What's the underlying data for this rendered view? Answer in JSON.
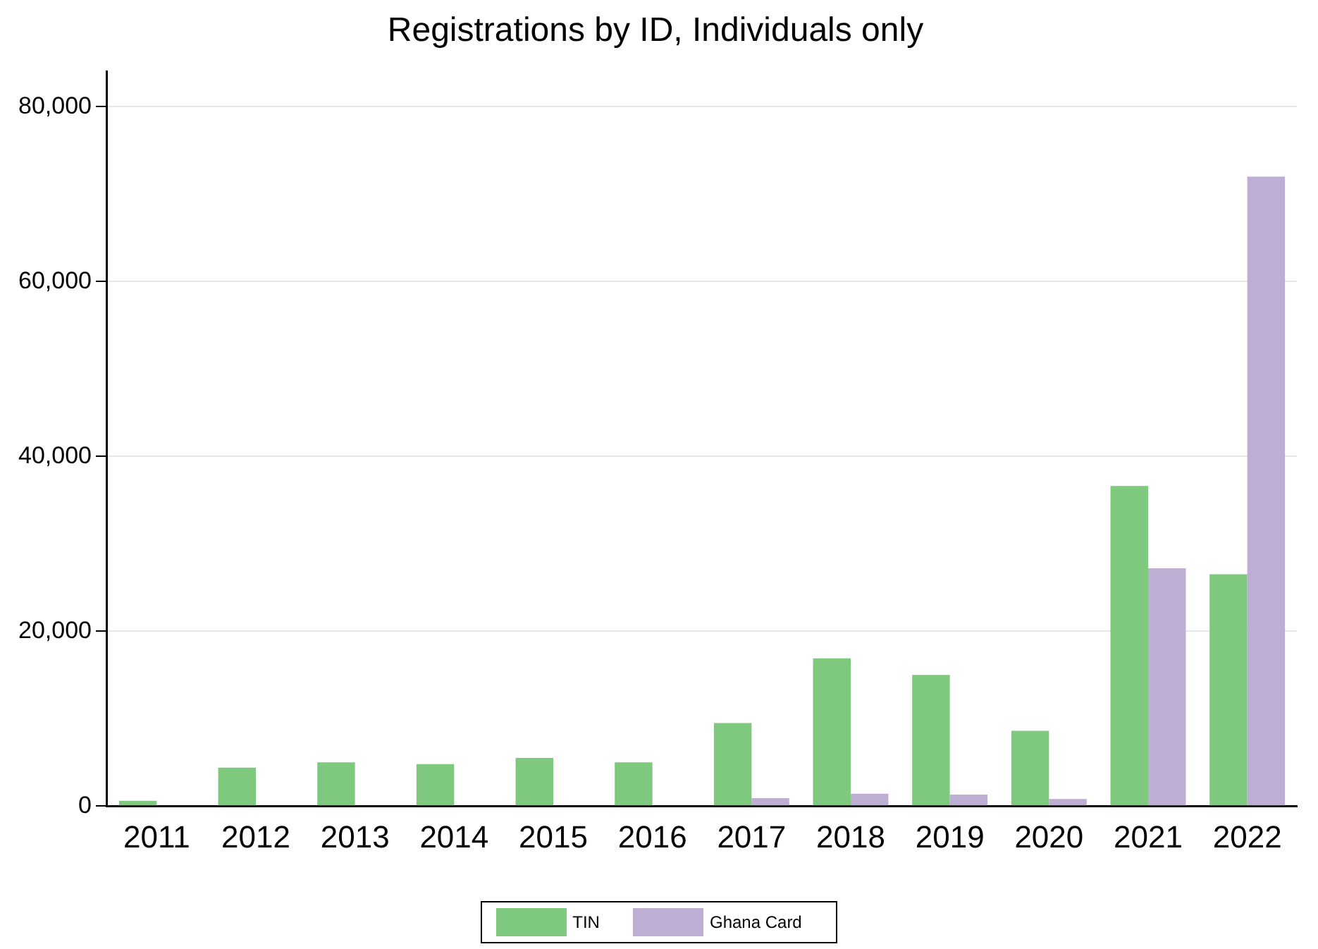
{
  "chart_data": {
    "type": "bar",
    "title": "Registrations by ID, Individuals only",
    "categories": [
      "2011",
      "2012",
      "2013",
      "2014",
      "2015",
      "2016",
      "2017",
      "2018",
      "2019",
      "2020",
      "2021",
      "2022"
    ],
    "series": [
      {
        "name": "TIN",
        "color": "#7fc97f",
        "values": [
          600,
          4400,
          5000,
          4800,
          5500,
          5000,
          9500,
          16900,
          15000,
          8600,
          36600,
          26500
        ]
      },
      {
        "name": "Ghana Card",
        "color": "#beaed4",
        "values": [
          0,
          0,
          0,
          0,
          0,
          0,
          900,
          1400,
          1300,
          800,
          27200,
          72000
        ]
      }
    ],
    "ylim": [
      0,
      84000
    ],
    "yticks": [
      0,
      {
        "value": 20000,
        "label": "20,000"
      },
      {
        "value": 40000,
        "label": "40,000"
      },
      {
        "value": 60000,
        "label": "60,000"
      },
      {
        "value": 80000,
        "label": "80,000"
      }
    ],
    "grid": "y",
    "legend": "bottom"
  }
}
